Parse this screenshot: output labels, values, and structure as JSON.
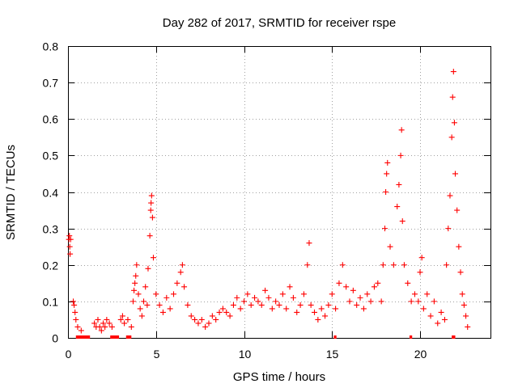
{
  "chart_data": {
    "type": "scatter",
    "title": "Day 282 of 2017, SRMTID for receiver rspe",
    "xlabel": "GPS time / hours",
    "ylabel": "SRMTID / TECUs",
    "xlim": [
      0,
      24
    ],
    "ylim": [
      0,
      0.8
    ],
    "xticks": [
      0,
      5,
      10,
      15,
      20
    ],
    "yticks": [
      0,
      0.1,
      0.2,
      0.3,
      0.4,
      0.5,
      0.6,
      0.7,
      0.8
    ],
    "xtick_labels": [
      "0",
      "5",
      "10",
      "15",
      "20"
    ],
    "ytick_labels": [
      "0",
      "0.1",
      "0.2",
      "0.3",
      "0.4",
      "0.5",
      "0.6",
      "0.7",
      "0.8"
    ],
    "grid": true,
    "marker": "+",
    "color": "#ff0000",
    "series": [
      {
        "name": "SRMTID",
        "points": [
          [
            0.05,
            0.27
          ],
          [
            0.08,
            0.28
          ],
          [
            0.1,
            0.25
          ],
          [
            0.12,
            0.23
          ],
          [
            0.15,
            0.27
          ],
          [
            0.3,
            0.1
          ],
          [
            0.35,
            0.09
          ],
          [
            0.4,
            0.07
          ],
          [
            0.45,
            0.05
          ],
          [
            0.55,
            0.03
          ],
          [
            0.75,
            0.02
          ],
          [
            1.5,
            0.04
          ],
          [
            1.6,
            0.03
          ],
          [
            1.7,
            0.05
          ],
          [
            1.8,
            0.03
          ],
          [
            1.9,
            0.02
          ],
          [
            2.0,
            0.04
          ],
          [
            2.1,
            0.03
          ],
          [
            2.2,
            0.05
          ],
          [
            2.35,
            0.04
          ],
          [
            2.5,
            0.03
          ],
          [
            3.0,
            0.05
          ],
          [
            3.1,
            0.06
          ],
          [
            3.2,
            0.04
          ],
          [
            3.4,
            0.05
          ],
          [
            3.6,
            0.03
          ],
          [
            3.7,
            0.1
          ],
          [
            3.75,
            0.13
          ],
          [
            3.8,
            0.15
          ],
          [
            3.85,
            0.17
          ],
          [
            3.9,
            0.2
          ],
          [
            4.0,
            0.12
          ],
          [
            4.1,
            0.08
          ],
          [
            4.2,
            0.06
          ],
          [
            4.3,
            0.1
          ],
          [
            4.4,
            0.14
          ],
          [
            4.5,
            0.09
          ],
          [
            4.55,
            0.19
          ],
          [
            4.65,
            0.28
          ],
          [
            4.7,
            0.35
          ],
          [
            4.72,
            0.37
          ],
          [
            4.75,
            0.39
          ],
          [
            4.8,
            0.33
          ],
          [
            4.85,
            0.22
          ],
          [
            5.0,
            0.12
          ],
          [
            5.2,
            0.09
          ],
          [
            5.4,
            0.07
          ],
          [
            5.6,
            0.11
          ],
          [
            5.8,
            0.08
          ],
          [
            6.0,
            0.12
          ],
          [
            6.2,
            0.15
          ],
          [
            6.4,
            0.18
          ],
          [
            6.5,
            0.2
          ],
          [
            6.6,
            0.14
          ],
          [
            6.8,
            0.09
          ],
          [
            7.0,
            0.06
          ],
          [
            7.2,
            0.05
          ],
          [
            7.4,
            0.04
          ],
          [
            7.6,
            0.05
          ],
          [
            7.8,
            0.03
          ],
          [
            8.0,
            0.04
          ],
          [
            8.2,
            0.06
          ],
          [
            8.4,
            0.05
          ],
          [
            8.6,
            0.07
          ],
          [
            8.8,
            0.08
          ],
          [
            9.0,
            0.07
          ],
          [
            9.2,
            0.06
          ],
          [
            9.4,
            0.09
          ],
          [
            9.6,
            0.11
          ],
          [
            9.8,
            0.08
          ],
          [
            10.0,
            0.1
          ],
          [
            10.2,
            0.12
          ],
          [
            10.4,
            0.09
          ],
          [
            10.6,
            0.11
          ],
          [
            10.8,
            0.1
          ],
          [
            11.0,
            0.09
          ],
          [
            11.2,
            0.13
          ],
          [
            11.4,
            0.11
          ],
          [
            11.6,
            0.08
          ],
          [
            11.8,
            0.1
          ],
          [
            12.0,
            0.09
          ],
          [
            12.2,
            0.12
          ],
          [
            12.4,
            0.08
          ],
          [
            12.6,
            0.14
          ],
          [
            12.8,
            0.11
          ],
          [
            13.0,
            0.07
          ],
          [
            13.2,
            0.09
          ],
          [
            13.4,
            0.12
          ],
          [
            13.6,
            0.2
          ],
          [
            13.7,
            0.26
          ],
          [
            13.8,
            0.09
          ],
          [
            14.0,
            0.07
          ],
          [
            14.2,
            0.05
          ],
          [
            14.4,
            0.08
          ],
          [
            14.6,
            0.06
          ],
          [
            14.8,
            0.09
          ],
          [
            15.0,
            0.12
          ],
          [
            15.2,
            0.08
          ],
          [
            15.4,
            0.15
          ],
          [
            15.6,
            0.2
          ],
          [
            15.8,
            0.14
          ],
          [
            16.0,
            0.1
          ],
          [
            16.2,
            0.13
          ],
          [
            16.4,
            0.09
          ],
          [
            16.6,
            0.11
          ],
          [
            16.8,
            0.08
          ],
          [
            17.0,
            0.12
          ],
          [
            17.2,
            0.1
          ],
          [
            17.4,
            0.14
          ],
          [
            17.6,
            0.15
          ],
          [
            17.8,
            0.1
          ],
          [
            17.9,
            0.2
          ],
          [
            18.0,
            0.3
          ],
          [
            18.05,
            0.4
          ],
          [
            18.1,
            0.45
          ],
          [
            18.15,
            0.48
          ],
          [
            18.3,
            0.25
          ],
          [
            18.5,
            0.2
          ],
          [
            18.7,
            0.36
          ],
          [
            18.8,
            0.42
          ],
          [
            18.9,
            0.5
          ],
          [
            18.95,
            0.57
          ],
          [
            19.0,
            0.32
          ],
          [
            19.1,
            0.2
          ],
          [
            19.3,
            0.15
          ],
          [
            19.5,
            0.1
          ],
          [
            19.7,
            0.12
          ],
          [
            19.9,
            0.1
          ],
          [
            20.0,
            0.18
          ],
          [
            20.1,
            0.22
          ],
          [
            20.2,
            0.08
          ],
          [
            20.4,
            0.12
          ],
          [
            20.6,
            0.06
          ],
          [
            20.8,
            0.1
          ],
          [
            21.0,
            0.04
          ],
          [
            21.2,
            0.07
          ],
          [
            21.4,
            0.05
          ],
          [
            21.5,
            0.2
          ],
          [
            21.6,
            0.3
          ],
          [
            21.7,
            0.39
          ],
          [
            21.8,
            0.55
          ],
          [
            21.85,
            0.66
          ],
          [
            21.9,
            0.73
          ],
          [
            21.95,
            0.59
          ],
          [
            22.0,
            0.45
          ],
          [
            22.1,
            0.35
          ],
          [
            22.2,
            0.25
          ],
          [
            22.3,
            0.18
          ],
          [
            22.4,
            0.12
          ],
          [
            22.5,
            0.09
          ],
          [
            22.6,
            0.06
          ],
          [
            22.7,
            0.03
          ]
        ],
        "zero_segments": [
          [
            0.45,
            1.25
          ],
          [
            2.4,
            2.9
          ],
          [
            3.3,
            3.6
          ],
          [
            15.1,
            15.25
          ],
          [
            19.4,
            19.55
          ],
          [
            21.8,
            22.0
          ]
        ]
      }
    ]
  }
}
